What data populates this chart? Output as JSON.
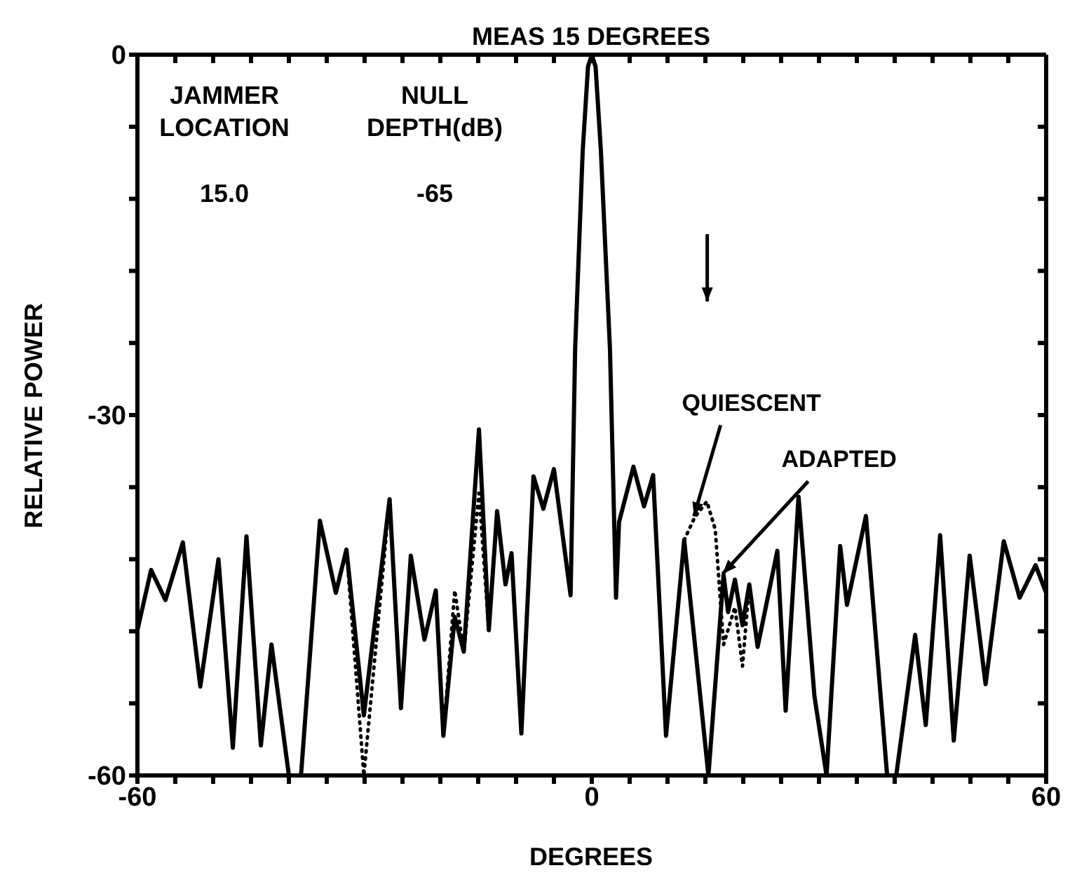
{
  "chart_data": {
    "type": "line",
    "title": "MEAS 15 DEGREES",
    "xlabel": "DEGREES",
    "ylabel": "RELATIVE POWER",
    "xlim": [
      -60,
      60
    ],
    "xticks": [
      -60,
      {
        "value": -55,
        "label": null
      },
      {
        "value": -50,
        "label": null
      },
      {
        "value": -45,
        "label": null
      },
      {
        "value": -40,
        "label": null
      },
      {
        "value": -35,
        "label": null
      },
      {
        "value": -30,
        "label": null
      },
      {
        "value": -25,
        "label": null
      },
      {
        "value": -20,
        "label": null
      },
      {
        "value": -15,
        "label": null
      },
      {
        "value": -10,
        "label": null
      },
      {
        "value": -5,
        "label": null
      },
      0,
      {
        "value": 5,
        "label": null
      },
      {
        "value": 10,
        "label": null
      },
      {
        "value": 15,
        "label": null
      },
      {
        "value": 20,
        "label": null
      },
      {
        "value": 25,
        "label": null
      },
      {
        "value": 30,
        "label": null
      },
      {
        "value": 35,
        "label": null
      },
      {
        "value": 40,
        "label": null
      },
      {
        "value": 45,
        "label": null
      },
      {
        "value": 50,
        "label": null
      },
      {
        "value": 55,
        "label": null
      },
      60
    ],
    "ylim": [
      -60,
      0
    ],
    "yticks": [
      -60,
      {
        "value": -54,
        "label": null
      },
      {
        "value": -48,
        "label": null
      },
      {
        "value": -42,
        "label": null
      },
      {
        "value": -36,
        "label": null
      },
      -30,
      {
        "value": -24,
        "label": null
      },
      {
        "value": -18,
        "label": null
      },
      {
        "value": -12,
        "label": null
      },
      {
        "value": -6,
        "label": null
      },
      0
    ],
    "grid": false,
    "legend": false,
    "marker": "none",
    "series": [
      {
        "color": "#000000",
        "line_style": "dotted",
        "x": [
          -33.8,
          -32.4,
          -30.1,
          -26.7,
          -24,
          -20.6,
          -19.6,
          -18.1,
          -16.9,
          -14.9,
          -13.6,
          0,
          12.2,
          13.6,
          15.2,
          16.3,
          17.4,
          18.9,
          19.9,
          20.8,
          21.9
        ],
        "values": [
          -44.8,
          -41.2,
          -60,
          -37,
          null,
          -44.6,
          -56.7,
          -44.6,
          -49.7,
          -36.5,
          -47.9,
          null,
          -40.4,
          -38.5,
          -37.2,
          -39.5,
          -49.1,
          -46,
          -50.9,
          -44.1,
          -49.3
        ]
      },
      {
        "color": "#000000",
        "line_style": "solid",
        "x": [
          -60,
          -58.2,
          -56.3,
          -54,
          -51.7,
          -49.3,
          -47.4,
          -45.6,
          -43.7,
          -42.3,
          -40,
          -38.4,
          -35.9,
          -33.8,
          -32.4,
          -30.1,
          -26.7,
          -25.2,
          -23.9,
          -22.1,
          -20.6,
          -19.6,
          -18.1,
          -16.9,
          -14.9,
          -13.6,
          -12.5,
          -11.4,
          -10.6,
          -9.3,
          -7.7,
          -6.4,
          -5,
          -2.8,
          -2.2,
          -1.2,
          -0.5,
          0,
          0.5,
          1.2,
          2.4,
          3.2,
          3.6,
          5.5,
          6.9,
          8.1,
          9.8,
          12.2,
          15.4,
          17.4,
          18,
          18.9,
          19.9,
          20.8,
          21.9,
          24.5,
          25.6,
          27.3,
          29.4,
          31,
          32.8,
          33.7,
          36.2,
          39,
          40.2,
          42.7,
          44.1,
          46,
          47.8,
          49.9,
          52,
          54.4,
          56.5,
          58.6,
          60
        ],
        "values": [
          -47.9,
          -42.9,
          -45.4,
          -40.6,
          -52.6,
          -42,
          -57.7,
          -40.1,
          -57.5,
          -49.1,
          -60,
          -60,
          -38.8,
          -44.8,
          -41.2,
          -55,
          -37,
          -54.4,
          -41.7,
          -48.7,
          -44.6,
          -56.7,
          -46.8,
          -49.7,
          -31.2,
          -47.9,
          -38,
          -44.1,
          -41.5,
          -56.5,
          -35.1,
          -37.8,
          -34.5,
          -45,
          -24.5,
          -8,
          -1,
          0,
          -1,
          -8,
          -24.5,
          -45.2,
          -38.9,
          -34.3,
          -37.6,
          -35,
          -56.7,
          -40.4,
          -60,
          -43.3,
          -46.4,
          -43.7,
          -47.5,
          -44.1,
          -49.3,
          -41.3,
          -54.6,
          -36.8,
          -53.4,
          -60,
          -40.9,
          -45.8,
          -38.4,
          -60,
          -60,
          -48.3,
          -55.8,
          -40,
          -57.1,
          -41.7,
          -52.4,
          -40.5,
          -45.2,
          -42.5,
          -44.8
        ]
      }
    ],
    "annotations": [
      "JAMMER LOCATION",
      "NULL DEPTH(dB)",
      "15.0",
      "-65",
      {
        "text": "QUIESCENT",
        "x": 13.6,
        "y": -38.5
      },
      {
        "text": "ADAPTED",
        "x": 17.4,
        "y": -43.3
      }
    ]
  }
}
